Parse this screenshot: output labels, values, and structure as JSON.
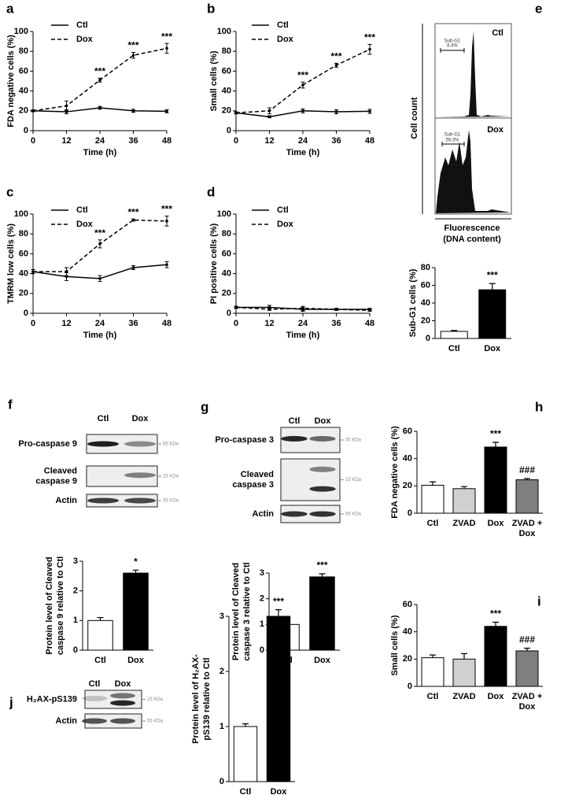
{
  "chart_data": [
    {
      "type": "line",
      "panel": "a",
      "ylabel": "FDA negative cells (%)",
      "xlabel": "Time (h)",
      "x": [
        0,
        12,
        24,
        36,
        48
      ],
      "xlim": [
        0,
        48
      ],
      "xticks": [
        0,
        12,
        24,
        36,
        48
      ],
      "ylim": [
        0,
        100
      ],
      "yticks": [
        0,
        20,
        40,
        60,
        80,
        100
      ],
      "series": [
        {
          "name": "Ctl",
          "color": "#000000",
          "dash": false,
          "values": [
            20,
            19,
            23,
            20,
            19.5
          ],
          "errors": [
            1,
            2,
            1.5,
            1.5,
            1.5
          ]
        },
        {
          "name": "Dox",
          "color": "#000000",
          "dash": true,
          "values": [
            20,
            25,
            51,
            76,
            83
          ],
          "errors": [
            1,
            5,
            2,
            3,
            5
          ]
        }
      ],
      "annotations": [
        null,
        null,
        "***",
        "***",
        "***"
      ]
    },
    {
      "type": "line",
      "panel": "b",
      "ylabel": "Small cells (%)",
      "xlabel": "Time (h)",
      "x": [
        0,
        12,
        24,
        36,
        48
      ],
      "xlim": [
        0,
        48
      ],
      "xticks": [
        0,
        12,
        24,
        36,
        48
      ],
      "ylim": [
        0,
        100
      ],
      "yticks": [
        0,
        20,
        40,
        60,
        80,
        100
      ],
      "series": [
        {
          "name": "Ctl",
          "color": "#000000",
          "dash": false,
          "values": [
            18,
            14,
            20,
            19,
            19.5
          ],
          "errors": [
            1,
            1,
            2,
            2,
            2
          ]
        },
        {
          "name": "Dox",
          "color": "#000000",
          "dash": true,
          "values": [
            18,
            20,
            46,
            66,
            82
          ],
          "errors": [
            1,
            3,
            3,
            2,
            5
          ]
        }
      ],
      "annotations": [
        null,
        null,
        "***",
        "***",
        "***"
      ]
    },
    {
      "type": "line",
      "panel": "c",
      "ylabel": "TMRM low cells (%)",
      "xlabel": "Time (h)",
      "x": [
        0,
        12,
        24,
        36,
        48
      ],
      "xlim": [
        0,
        48
      ],
      "xticks": [
        0,
        12,
        24,
        36,
        48
      ],
      "ylim": [
        0,
        100
      ],
      "yticks": [
        0,
        20,
        40,
        60,
        80,
        100
      ],
      "series": [
        {
          "name": "Ctl",
          "color": "#000000",
          "dash": false,
          "values": [
            42,
            37,
            35,
            46,
            49
          ],
          "errors": [
            2,
            4,
            3,
            2,
            3
          ]
        },
        {
          "name": "Dox",
          "color": "#000000",
          "dash": true,
          "values": [
            42,
            42,
            70,
            94,
            93
          ],
          "errors": [
            2,
            4,
            4,
            1,
            5
          ]
        }
      ],
      "annotations": [
        null,
        null,
        "***",
        "***",
        "***"
      ]
    },
    {
      "type": "line",
      "panel": "d",
      "ylabel": "PI positive cells (%)",
      "xlabel": "Time (h)",
      "x": [
        0,
        12,
        24,
        36,
        48
      ],
      "xlim": [
        0,
        48
      ],
      "xticks": [
        0,
        12,
        24,
        36,
        48
      ],
      "ylim": [
        0,
        100
      ],
      "yticks": [
        0,
        20,
        40,
        60,
        80,
        100
      ],
      "series": [
        {
          "name": "Ctl",
          "color": "#000000",
          "dash": false,
          "values": [
            6,
            6,
            4,
            4,
            4
          ],
          "errors": [
            1,
            2,
            2,
            1,
            1
          ]
        },
        {
          "name": "Dox",
          "color": "#000000",
          "dash": true,
          "values": [
            6,
            4,
            5,
            4,
            3
          ],
          "errors": [
            1,
            1,
            2,
            1,
            1
          ]
        }
      ]
    },
    {
      "type": "bar",
      "panel": "e",
      "ylabel": "Sub-G1 cells (%)",
      "categories": [
        "Ctl",
        "Dox"
      ],
      "values": [
        8,
        55
      ],
      "errors": [
        1,
        7
      ],
      "colors": [
        "#ffffff",
        "#000000"
      ],
      "ylim": [
        0,
        80
      ],
      "yticks": [
        0,
        20,
        40,
        60,
        80
      ],
      "annotations": [
        null,
        "***"
      ]
    },
    {
      "type": "bar",
      "panel": "f",
      "ylabel": [
        "Protein level of Cleaved",
        "caspase 9 relative to Ctl"
      ],
      "categories": [
        "Ctl",
        "Dox"
      ],
      "values": [
        1,
        2.6
      ],
      "errors": [
        0.1,
        0.1
      ],
      "colors": [
        "#ffffff",
        "#000000"
      ],
      "ylim": [
        0,
        3
      ],
      "yticks": [
        0,
        1,
        2,
        3
      ],
      "annotations": [
        null,
        "*"
      ]
    },
    {
      "type": "bar",
      "panel": "g",
      "ylabel": [
        "Protein level of Cleaved",
        "caspase 3 relative to Ctl"
      ],
      "categories": [
        "Ctl",
        "Dox"
      ],
      "values": [
        1,
        2.85
      ],
      "errors": [
        0.08,
        0.12
      ],
      "colors": [
        "#ffffff",
        "#000000"
      ],
      "ylim": [
        0,
        3
      ],
      "yticks": [
        0,
        1,
        2,
        3
      ],
      "annotations": [
        null,
        "***"
      ]
    },
    {
      "type": "bar",
      "panel": "h",
      "ylabel": "FDA negative cells (%)",
      "categories": [
        "Ctl",
        "ZVAD",
        "Dox",
        [
          "ZVAD +",
          "Dox"
        ]
      ],
      "values": [
        20.5,
        18,
        48.5,
        24.5
      ],
      "errors": [
        2.5,
        1.5,
        3.5,
        1
      ],
      "colors": [
        "#ffffff",
        "#d0d0d0",
        "#000000",
        "#7f7f7f"
      ],
      "ylim": [
        0,
        60
      ],
      "yticks": [
        0,
        20,
        40,
        60
      ],
      "annotations": [
        null,
        null,
        "***",
        "###"
      ]
    },
    {
      "type": "bar",
      "panel": "i",
      "ylabel": "Small cells (%)",
      "categories": [
        "Ctl",
        "ZVAD",
        "Dox",
        [
          "ZVAD +",
          "Dox"
        ]
      ],
      "values": [
        21,
        20,
        44,
        26
      ],
      "errors": [
        2,
        4,
        3,
        2
      ],
      "colors": [
        "#ffffff",
        "#d0d0d0",
        "#000000",
        "#7f7f7f"
      ],
      "ylim": [
        0,
        60
      ],
      "yticks": [
        0,
        20,
        40,
        60
      ],
      "annotations": [
        null,
        null,
        "***",
        "###"
      ]
    },
    {
      "type": "bar",
      "panel": "j",
      "ylabel": [
        "Protein level of H₂AX-",
        "pS139 relative to Ctl"
      ],
      "categories": [
        "Ctl",
        "Dox"
      ],
      "values": [
        1,
        3.0
      ],
      "errors": [
        0.05,
        0.12
      ],
      "colors": [
        "#ffffff",
        "#000000"
      ],
      "ylim": [
        0,
        3
      ],
      "yticks": [
        0,
        1,
        2,
        3
      ],
      "annotations": [
        null,
        "***"
      ]
    }
  ],
  "flow": {
    "ylabel": "Cell count",
    "xlabel": [
      "Fluorescence",
      "(DNA content)"
    ],
    "panels": [
      {
        "name": "Ctl",
        "gate": "Sub-G1",
        "percent": "8.4%"
      },
      {
        "name": "Dox",
        "gate": "Sub-G1",
        "percent": "59.3%"
      }
    ]
  },
  "blots": [
    {
      "panel": "f",
      "lanes": [
        "Ctl",
        "Dox"
      ],
      "rows": [
        {
          "label": "Pro-caspase 9",
          "marker": "55 KDa"
        },
        {
          "label": [
            "Cleaved",
            "caspase 9"
          ],
          "marker": "15 KDa"
        },
        {
          "label": "Actin",
          "marker": "55 KDa"
        }
      ]
    },
    {
      "panel": "g",
      "lanes": [
        "Ctl",
        "Dox"
      ],
      "rows": [
        {
          "label": "Pro-caspase 3",
          "marker": "35 KDa"
        },
        {
          "label": [
            "Cleaved",
            "caspase 3"
          ],
          "marker": "15 KDa"
        },
        {
          "label": "Actin",
          "marker": "55 KDa"
        }
      ]
    },
    {
      "panel": "j",
      "lanes": [
        "Ctl",
        "Dox"
      ],
      "rows": [
        {
          "label": "H₂AX-pS139",
          "marker": "15 KDa"
        },
        {
          "label": "Actin",
          "marker": "55 KDa"
        }
      ]
    }
  ]
}
